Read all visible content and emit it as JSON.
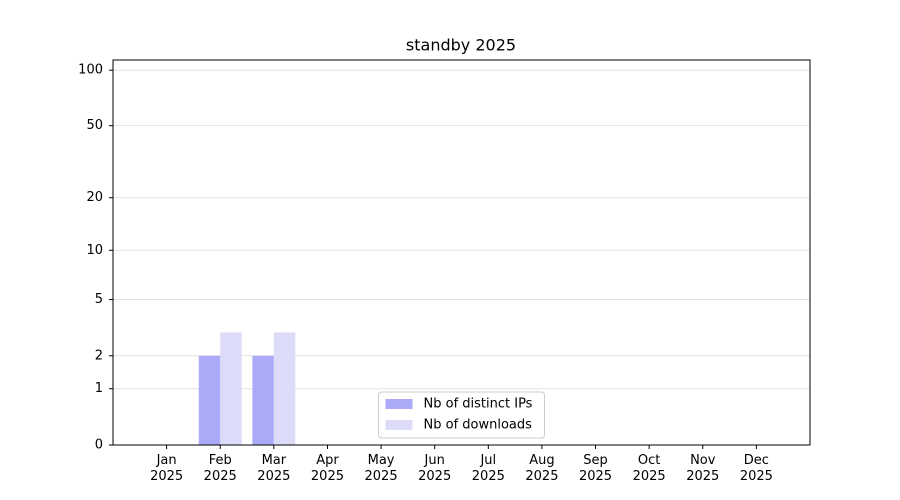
{
  "chart_data": {
    "type": "bar",
    "title": "standby 2025",
    "categories": [
      "Jan\n2025",
      "Feb\n2025",
      "Mar\n2025",
      "Apr\n2025",
      "May\n2025",
      "Jun\n2025",
      "Jul\n2025",
      "Aug\n2025",
      "Sep\n2025",
      "Oct\n2025",
      "Nov\n2025",
      "Dec\n2025"
    ],
    "series": [
      {
        "name": "Nb of distinct IPs",
        "color": "#aaaaf8",
        "values": [
          0,
          2,
          2,
          0,
          0,
          0,
          0,
          0,
          0,
          0,
          0,
          0
        ]
      },
      {
        "name": "Nb of downloads",
        "color": "#dcdcf8",
        "values": [
          0,
          3,
          3,
          0,
          0,
          0,
          0,
          0,
          0,
          0,
          0,
          0
        ]
      }
    ],
    "yscale": "log1p",
    "ylim": [
      0,
      113.5
    ],
    "yticks": [
      0,
      1,
      2,
      5,
      10,
      20,
      50,
      100
    ],
    "grid": true,
    "legend": "lower center"
  }
}
